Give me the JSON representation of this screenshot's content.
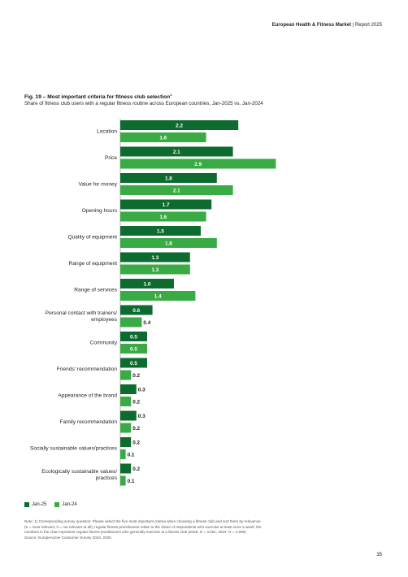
{
  "header": {
    "brand": "European Health & Fitness Market",
    "separator": " | ",
    "report": "Report 2025"
  },
  "figure": {
    "title": "Fig. 19 – Most important criteria for fitness club selection",
    "title_sup": "1",
    "subtitle": "Share of fitness club users with a regular fitness routine across European countries, Jan-2025 vs. Jan-2024"
  },
  "colors": {
    "jan25": "#0e6b2f",
    "jan24": "#3aaa45"
  },
  "chart_data": {
    "type": "bar",
    "orientation": "horizontal",
    "categories": [
      "Location",
      "Price",
      "Value for money",
      "Opening hours",
      "Quality of equipment",
      "Range of equipment",
      "Range of services",
      "Personal contact with trainers/ employees",
      "Community",
      "Friends' recommendation",
      "Appearance of the brand",
      "Family recommendation",
      "Socially sustainable values/practices",
      "Ecologically sustainable values/ practices"
    ],
    "series": [
      {
        "name": "Jan-25",
        "values": [
          2.2,
          2.1,
          1.8,
          1.7,
          1.5,
          1.3,
          1.0,
          0.6,
          0.5,
          0.5,
          0.3,
          0.3,
          0.2,
          0.2
        ]
      },
      {
        "name": "Jan-24",
        "values": [
          1.6,
          2.9,
          2.1,
          1.6,
          1.8,
          1.3,
          1.4,
          0.4,
          0.5,
          0.2,
          0.2,
          0.2,
          0.1,
          0.1
        ]
      }
    ],
    "legend": "bottom-left",
    "grid": false
  },
  "legend": {
    "jan25": "Jan-25",
    "jan24": "Jan-24"
  },
  "notes": {
    "line1": "Note: 1) Corresponding survey question: Please select the five most important criteria when choosing a fitness club and sort them by relevance",
    "line2": "(5 = most relevant; 0 = not relevant at all); regular fitness practitioners relate to the share of respondents who exercise at least once a week; the",
    "line3": "numbers in the chart represent regular fitness practitioners who generally exercise at a fitness club (2025: N = 4,061; 2024: N = 2,995)",
    "line4": "Source: EuropeActive Consumer Survey 2024, 2025"
  },
  "page_number": "35"
}
